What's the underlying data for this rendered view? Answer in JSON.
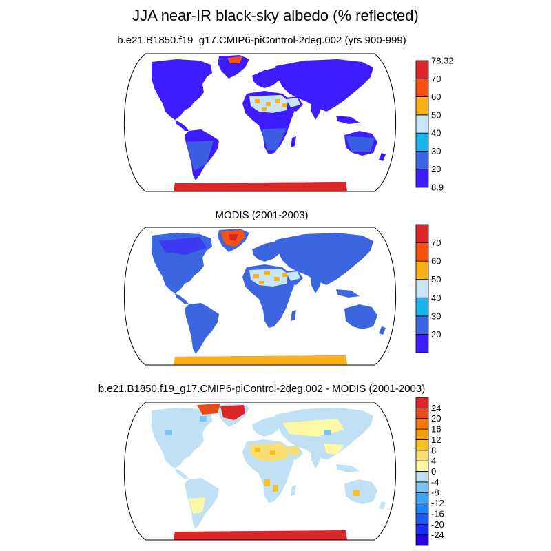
{
  "figure": {
    "title": "JJA near-IR black-sky albedo (% reflected)"
  },
  "panels": [
    {
      "title": "b.e21.B1850.f19_g17.CMIP6-piControl-2deg.002 (yrs 900-999)",
      "colorbar": {
        "colors": [
          "#3d1dff",
          "#3b66e0",
          "#1ab4f0",
          "#c8e6f7",
          "#fab11a",
          "#f7520f",
          "#d92626"
        ],
        "labels": [
          "8.9",
          "20",
          "30",
          "40",
          "50",
          "60",
          "70",
          "78.32"
        ]
      }
    },
    {
      "title": "MODIS (2001-2003)",
      "colorbar": {
        "colors": [
          "#3d1dff",
          "#3b66e0",
          "#1ab4f0",
          "#c8e6f7",
          "#fab11a",
          "#f7520f",
          "#d92626"
        ],
        "labels": [
          "20",
          "30",
          "40",
          "50",
          "60",
          "70"
        ]
      }
    },
    {
      "title": "b.e21.B1850.f19_g17.CMIP6-piControl-2deg.002 - MODIS (2001-2003)",
      "colorbar": {
        "colors": [
          "#2a00e6",
          "#1a2df0",
          "#1d5af0",
          "#1f86f5",
          "#38a8f5",
          "#7ec4f0",
          "#bfe0f5",
          "#fdf7a6",
          "#f9df72",
          "#f8c020",
          "#f59d10",
          "#f57a10",
          "#e64d1a",
          "#d92626"
        ],
        "labels": [
          "-24",
          "-20",
          "-16",
          "-12",
          "-8",
          "-4",
          "0",
          "4",
          "8",
          "12",
          "16",
          "20",
          "24"
        ]
      }
    }
  ]
}
